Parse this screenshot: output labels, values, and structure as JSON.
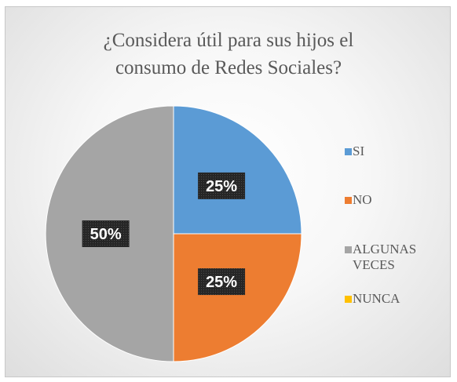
{
  "chart_data": {
    "type": "pie",
    "title": "¿Considera útil para sus hijos el consumo de Redes Sociales?",
    "title_lines": [
      "¿Considera útil para sus hijos el",
      "consumo de Redes Sociales?"
    ],
    "categories": [
      "SI",
      "NO",
      "ALGUNAS VECES",
      "NUNCA"
    ],
    "values": [
      25,
      25,
      50,
      0
    ],
    "data_labels": [
      "25%",
      "25%",
      "50%",
      ""
    ],
    "colors": [
      "#5b9bd5",
      "#ed7d31",
      "#a5a5a5",
      "#ffc000"
    ],
    "legend_position": "right"
  },
  "legend": {
    "items": [
      {
        "label_lines": [
          "SI"
        ],
        "color": "#5b9bd5"
      },
      {
        "label_lines": [
          "NO"
        ],
        "color": "#ed7d31"
      },
      {
        "label_lines": [
          "ALGUNAS",
          "VECES"
        ],
        "color": "#a5a5a5"
      },
      {
        "label_lines": [
          "NUNCA"
        ],
        "color": "#ffc000"
      }
    ]
  }
}
